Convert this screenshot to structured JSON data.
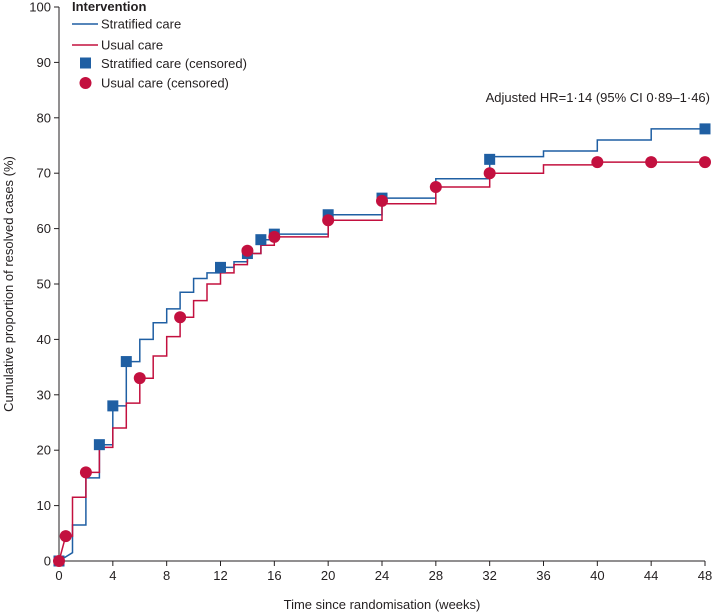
{
  "chart_data": {
    "type": "line",
    "subtype": "step",
    "title": "",
    "xlabel": "Time since randomisation (weeks)",
    "ylabel": "Cumulative proportion of resolved cases (%)",
    "xlim": [
      0,
      48
    ],
    "ylim": [
      0,
      100
    ],
    "xticks": [
      0,
      4,
      8,
      12,
      16,
      20,
      24,
      28,
      32,
      36,
      40,
      44,
      48
    ],
    "yticks": [
      0,
      10,
      20,
      30,
      40,
      50,
      60,
      70,
      80,
      90,
      100
    ],
    "grid": false,
    "legend_title": "Intervention",
    "legend_position": "top-left",
    "annotation": "Adjusted HR=1·14 (95% CI 0·89–1·46)",
    "colors": {
      "stratified": "#1f5fa3",
      "usual": "#c3103f",
      "axis": "#231f20"
    },
    "series": [
      {
        "name": "Stratified care",
        "kind": "step",
        "color": "#1f5fa3",
        "points": [
          [
            0,
            0
          ],
          [
            1,
            1.5
          ],
          [
            1,
            6.5
          ],
          [
            2,
            6.5
          ],
          [
            2,
            15
          ],
          [
            3,
            15
          ],
          [
            3,
            21
          ],
          [
            4,
            21
          ],
          [
            4,
            28
          ],
          [
            5,
            28
          ],
          [
            5,
            36
          ],
          [
            6,
            36
          ],
          [
            6,
            40
          ],
          [
            7,
            40
          ],
          [
            7,
            43
          ],
          [
            8,
            43
          ],
          [
            8,
            45.5
          ],
          [
            9,
            45.5
          ],
          [
            9,
            48.5
          ],
          [
            10,
            48.5
          ],
          [
            10,
            51
          ],
          [
            11,
            51
          ],
          [
            11,
            52
          ],
          [
            12,
            52
          ],
          [
            12,
            53
          ],
          [
            13,
            53
          ],
          [
            13,
            54
          ],
          [
            14,
            54
          ],
          [
            14,
            55.5
          ],
          [
            15,
            55.5
          ],
          [
            15,
            58
          ],
          [
            16,
            58
          ],
          [
            16,
            59
          ],
          [
            20,
            59
          ],
          [
            20,
            62.5
          ],
          [
            24,
            62.5
          ],
          [
            24,
            65.5
          ],
          [
            28,
            65.5
          ],
          [
            28,
            69
          ],
          [
            32,
            69
          ],
          [
            32,
            73
          ],
          [
            36,
            73
          ],
          [
            36,
            74
          ],
          [
            40,
            74
          ],
          [
            40,
            76
          ],
          [
            44,
            76
          ],
          [
            44,
            78
          ],
          [
            48,
            78
          ]
        ]
      },
      {
        "name": "Usual care",
        "kind": "step",
        "color": "#c3103f",
        "points": [
          [
            0,
            0
          ],
          [
            0.5,
            4.5
          ],
          [
            1,
            4.5
          ],
          [
            1,
            11.5
          ],
          [
            2,
            11.5
          ],
          [
            2,
            16
          ],
          [
            3,
            16
          ],
          [
            3,
            20.5
          ],
          [
            4,
            20.5
          ],
          [
            4,
            24
          ],
          [
            5,
            24
          ],
          [
            5,
            28.5
          ],
          [
            6,
            28.5
          ],
          [
            6,
            33
          ],
          [
            7,
            33
          ],
          [
            7,
            37
          ],
          [
            8,
            37
          ],
          [
            8,
            40.5
          ],
          [
            9,
            40.5
          ],
          [
            9,
            44
          ],
          [
            10,
            44
          ],
          [
            10,
            47
          ],
          [
            11,
            47
          ],
          [
            11,
            50
          ],
          [
            12,
            50
          ],
          [
            12,
            52
          ],
          [
            13,
            52
          ],
          [
            13,
            53.5
          ],
          [
            14,
            53.5
          ],
          [
            14,
            55.5
          ],
          [
            15,
            55.5
          ],
          [
            15,
            57
          ],
          [
            16,
            57
          ],
          [
            16,
            58.5
          ],
          [
            20,
            58.5
          ],
          [
            20,
            61.5
          ],
          [
            24,
            61.5
          ],
          [
            24,
            64.5
          ],
          [
            28,
            64.5
          ],
          [
            28,
            67.5
          ],
          [
            32,
            67.5
          ],
          [
            32,
            70
          ],
          [
            36,
            70
          ],
          [
            36,
            71.5
          ],
          [
            40,
            71.5
          ],
          [
            40,
            72
          ],
          [
            48,
            72
          ]
        ]
      },
      {
        "name": "Stratified care (censored)",
        "kind": "marker",
        "marker": "square",
        "color": "#1f5fa3",
        "points": [
          [
            0,
            0
          ],
          [
            3,
            21
          ],
          [
            4,
            28
          ],
          [
            5,
            36
          ],
          [
            12,
            53
          ],
          [
            14,
            55.5
          ],
          [
            15,
            58
          ],
          [
            16,
            59
          ],
          [
            20,
            62.5
          ],
          [
            24,
            65.5
          ],
          [
            32,
            72.5
          ],
          [
            48,
            78
          ]
        ]
      },
      {
        "name": "Usual care (censored)",
        "kind": "marker",
        "marker": "circle",
        "color": "#c3103f",
        "points": [
          [
            0,
            0
          ],
          [
            0.5,
            4.5
          ],
          [
            2,
            16
          ],
          [
            6,
            33
          ],
          [
            9,
            44
          ],
          [
            14,
            56
          ],
          [
            16,
            58.5
          ],
          [
            20,
            61.5
          ],
          [
            24,
            65
          ],
          [
            28,
            67.5
          ],
          [
            32,
            70
          ],
          [
            40,
            72
          ],
          [
            44,
            72
          ],
          [
            48,
            72
          ]
        ]
      }
    ]
  }
}
